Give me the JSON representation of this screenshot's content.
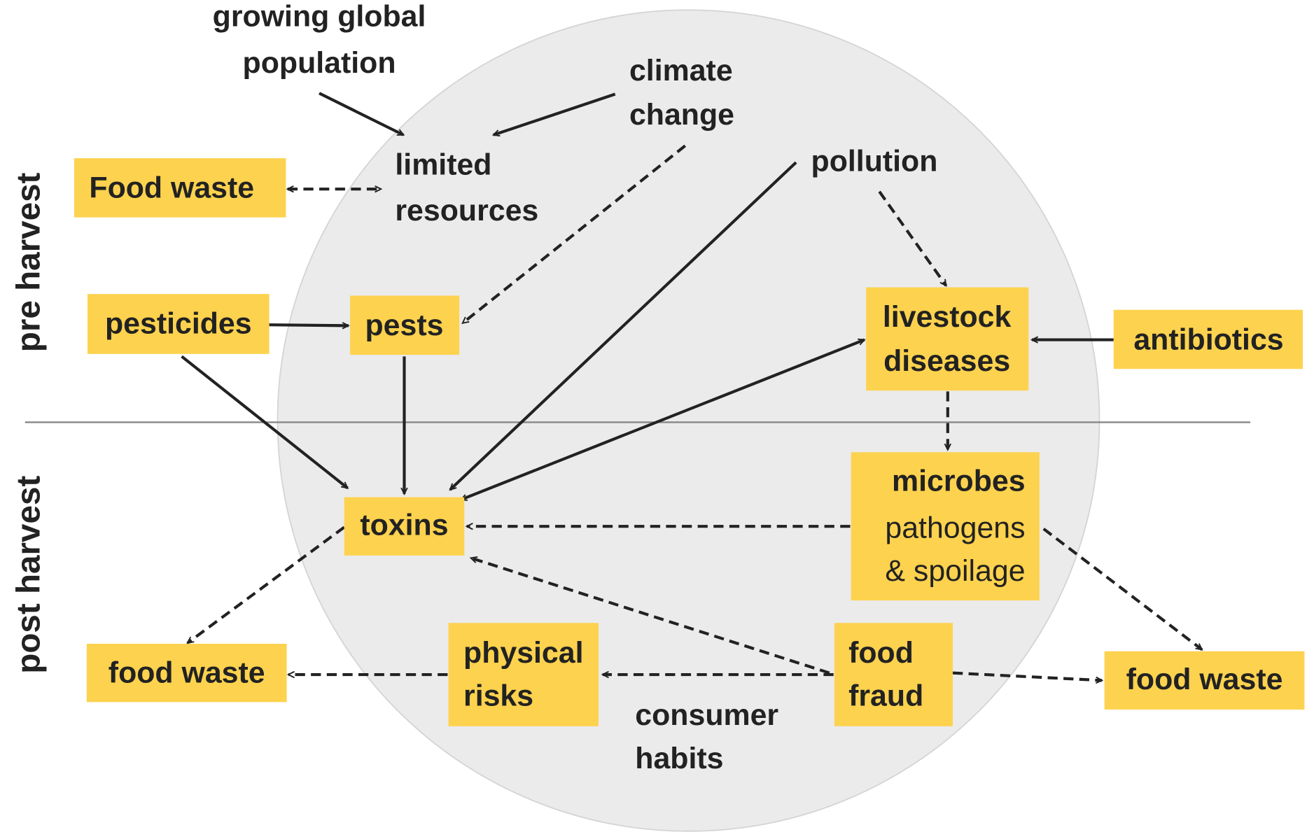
{
  "nodes": [
    {
      "lines": [
        "growing global",
        "population"
      ]
    },
    {
      "lines": [
        "climate",
        "change"
      ]
    },
    {
      "lines": [
        "limited",
        "resources"
      ]
    },
    {
      "lines": [
        "Food waste"
      ]
    },
    {
      "lines": [
        "pollution"
      ]
    },
    {
      "lines": [
        "pesticides"
      ]
    },
    {
      "lines": [
        "pests"
      ]
    },
    {
      "lines": [
        "livestock",
        "diseases"
      ]
    },
    {
      "lines": [
        "antibiotics"
      ]
    },
    {
      "lines": [
        "microbes",
        "pathogens",
        "& spoilage"
      ]
    },
    {
      "lines": [
        "toxins"
      ]
    },
    {
      "lines": [
        "food waste"
      ]
    },
    {
      "lines": [
        "physical",
        "risks"
      ]
    },
    {
      "lines": [
        "food",
        "fraud"
      ]
    },
    {
      "lines": [
        "food waste"
      ]
    },
    {
      "lines": [
        "consumer",
        "habits"
      ]
    }
  ],
  "side_labels": [
    "pre harvest",
    "post harvest"
  ]
}
